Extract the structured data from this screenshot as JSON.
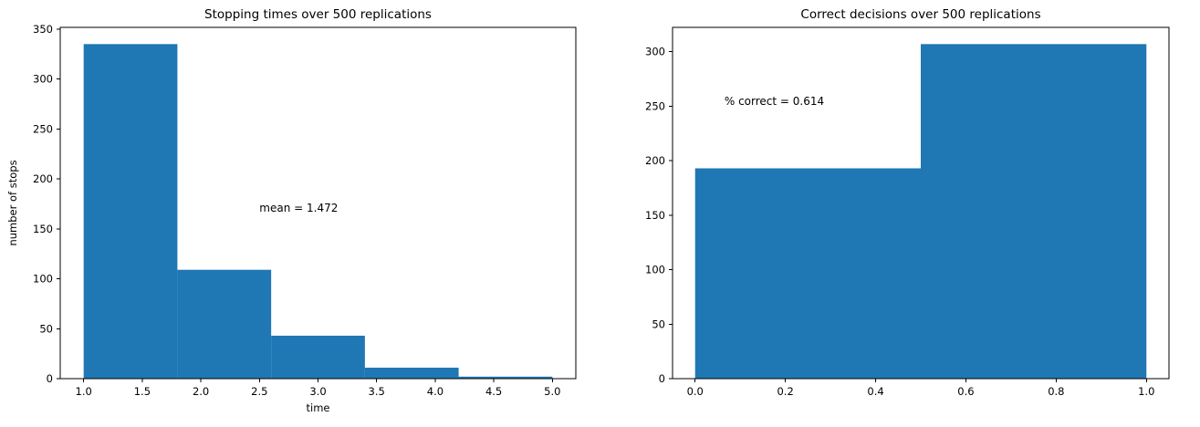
{
  "figure": {
    "background": "#ffffff"
  },
  "chart_data": [
    {
      "type": "bar",
      "subtype": "histogram",
      "title": "Stopping times over 500 replications",
      "xlabel": "time",
      "ylabel": "number of stops",
      "bar_color": "#1f77b4",
      "bin_edges": [
        1.0,
        1.8,
        2.6,
        3.4,
        4.2,
        5.0
      ],
      "counts": [
        335,
        109,
        43,
        11,
        2
      ],
      "xlim": [
        0.8,
        5.2
      ],
      "ylim": [
        0,
        351.75
      ],
      "xticks": [
        1.0,
        1.5,
        2.0,
        2.5,
        3.0,
        3.5,
        4.0,
        4.5,
        5.0
      ],
      "xtick_labels": [
        "1.0",
        "1.5",
        "2.0",
        "2.5",
        "3.0",
        "3.5",
        "4.0",
        "4.5",
        "5.0"
      ],
      "yticks": [
        0,
        50,
        100,
        150,
        200,
        250,
        300,
        350
      ],
      "ytick_labels": [
        "0",
        "50",
        "100",
        "150",
        "200",
        "250",
        "300",
        "350"
      ],
      "annotation": {
        "text": "mean = 1.472",
        "x": 2.5,
        "y": 167
      },
      "grid": false,
      "legend": "none"
    },
    {
      "type": "bar",
      "subtype": "histogram",
      "title": "Correct decisions over 500 replications",
      "xlabel": "",
      "ylabel": "",
      "bar_color": "#1f77b4",
      "bin_edges": [
        0.0,
        0.5,
        1.0
      ],
      "counts": [
        193,
        307
      ],
      "xlim": [
        -0.05,
        1.05
      ],
      "ylim": [
        0,
        322.35
      ],
      "xticks": [
        0.0,
        0.2,
        0.4,
        0.6,
        0.8,
        1.0
      ],
      "xtick_labels": [
        "0.0",
        "0.2",
        "0.4",
        "0.6",
        "0.8",
        "1.0"
      ],
      "yticks": [
        0,
        50,
        100,
        150,
        200,
        250,
        300
      ],
      "ytick_labels": [
        "0",
        "50",
        "100",
        "150",
        "200",
        "250",
        "300"
      ],
      "annotation": {
        "text": "% correct = 0.614",
        "x": 0.065,
        "y": 251
      },
      "grid": false,
      "legend": "none"
    }
  ]
}
